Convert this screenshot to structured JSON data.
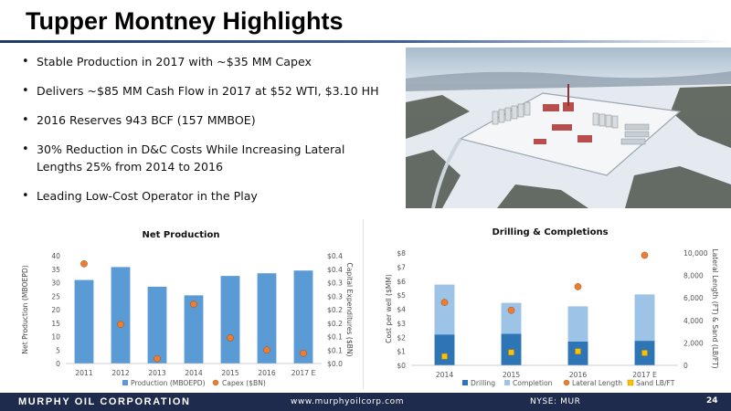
{
  "slide": {
    "title": "Tupper Montney Highlights",
    "bullets": [
      "Stable Production in 2017 with ~$35 MM Capex",
      "Delivers ~$85 MM Cash Flow in 2017 at $52 WTI, $3.10 HH",
      "2016 Reserves 943 BCF (157 MMBOE)",
      "30% Reduction in D&C Costs While Increasing Lateral Lengths 25% from 2014 to 2016",
      "Leading Low-Cost Operator in the Play"
    ]
  },
  "footer": {
    "company": "MURPHY OIL CORPORATION",
    "url": "www.murphyoilcorp.com",
    "ticker": "NYSE: MUR",
    "page": "24"
  },
  "colors": {
    "production_bar": "#5b9bd5",
    "capex_dot": "#ed7d31",
    "drilling_bar": "#2e75b6",
    "completion_bar": "#9dc3e6",
    "lateral_dot": "#ed7d31",
    "sand_marker": "#ffc000",
    "footer_bg": "#1f2b4d",
    "title_rule": "#1f3a6b"
  },
  "chart_data": [
    {
      "type": "bar",
      "title": "Net Production",
      "categories": [
        "2011",
        "2012",
        "2013",
        "2014",
        "2015",
        "2016",
        "2017 E"
      ],
      "ylabel": "Net Production (MBOEPD)",
      "y2label": "Capital Expenditures ($BN)",
      "ylim": [
        0,
        40
      ],
      "yticks": [
        "0",
        "5",
        "10",
        "15",
        "20",
        "25",
        "30",
        "35",
        "40"
      ],
      "y2lim": [
        0,
        0.4
      ],
      "y2ticks": [
        "$0.0",
        "$0.1",
        "$0.1",
        "$0.2",
        "$0.2",
        "$0.3",
        "$0.3",
        "$0.4",
        "$0.4"
      ],
      "series": [
        {
          "name": "Production (MBOEPD)",
          "kind": "bar",
          "axis": "left",
          "values": [
            31,
            35.8,
            28.5,
            25.3,
            32.5,
            33.5,
            34.5
          ]
        },
        {
          "name": "Capex ($BN)",
          "kind": "dot",
          "axis": "right",
          "values": [
            0.37,
            0.145,
            0.018,
            0.22,
            0.095,
            0.05,
            0.038
          ]
        }
      ],
      "legend": "bottom",
      "grid": false
    },
    {
      "type": "bar",
      "stacked": true,
      "title": "Drilling & Completions",
      "categories": [
        "2014",
        "2015",
        "2016",
        "2017 E"
      ],
      "ylabel": "Cost per well ($MM)",
      "y2label": "Lateral Length (FT) & Sand (LB/FT)",
      "ylim": [
        0,
        8
      ],
      "yticks": [
        "$0",
        "$1",
        "$2",
        "$3",
        "$4",
        "$5",
        "$6",
        "$7",
        "$8"
      ],
      "y2lim": [
        0,
        10000
      ],
      "y2ticks": [
        "0",
        "2,000",
        "4,000",
        "6,000",
        "8,000",
        "10,000"
      ],
      "series": [
        {
          "name": "Drilling",
          "kind": "bar",
          "axis": "left",
          "values": [
            2.2,
            2.25,
            1.7,
            1.75
          ]
        },
        {
          "name": "Completion",
          "kind": "bar",
          "axis": "left",
          "values": [
            3.55,
            2.2,
            2.5,
            3.3
          ]
        },
        {
          "name": "Lateral Length",
          "kind": "dot",
          "axis": "right",
          "values": [
            5600,
            4900,
            7000,
            9800
          ]
        },
        {
          "name": "Sand LB/FT",
          "kind": "square",
          "axis": "right",
          "values": [
            800,
            1150,
            1250,
            1100
          ]
        }
      ],
      "legend": "bottom",
      "grid": false
    }
  ]
}
